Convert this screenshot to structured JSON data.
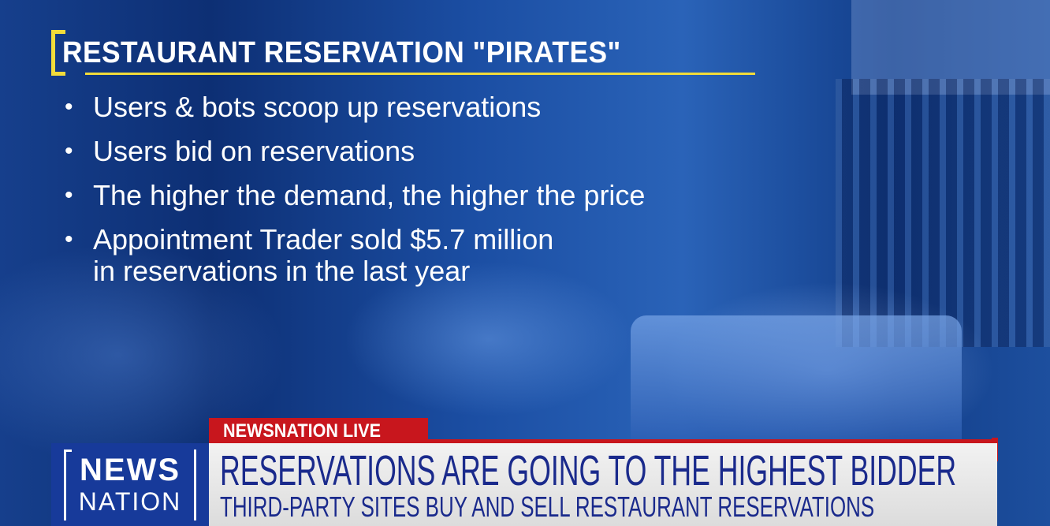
{
  "graphic": {
    "title": "RESTAURANT RESERVATION \"PIRATES\"",
    "bullets": [
      {
        "text": "Users & bots scoop up reservations"
      },
      {
        "text": "Users bid on reservations"
      },
      {
        "text": "The higher the demand, the higher the price"
      },
      {
        "text": "Appointment Trader sold $5.7 million",
        "continuation": "in reservations in the last year"
      }
    ],
    "accent_color": "#f2dc3a"
  },
  "lower_third": {
    "live_label": "NEWSNATION LIVE",
    "logo": {
      "line1": "NEWS",
      "line2": "NATION"
    },
    "headline": "RESERVATIONS ARE GOING TO THE HIGHEST BIDDER",
    "subheadline": "THIRD-PARTY SITES BUY AND SELL RESTAURANT RESERVATIONS",
    "colors": {
      "red": "#c8161d",
      "navy": "#1a2a8c",
      "logo_blue": "#173a9a"
    }
  }
}
